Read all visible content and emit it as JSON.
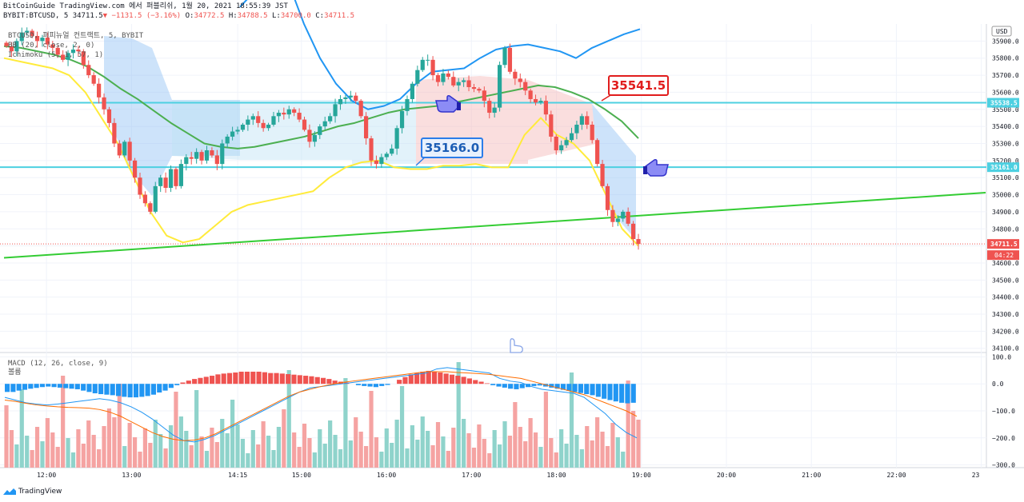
{
  "header": {
    "line1": "BitCoinGuide TradingView.com 에서 퍼블리쉬, 1월 20, 2021 18:55:39 JST",
    "symbol": "BYBIT:BTCUSD, 5",
    "last": "34711.5",
    "change": "−1131.5 (−3.16%)",
    "o_label": "O:",
    "o": "34772.5",
    "h_label": "H:",
    "h": "34788.5",
    "l_label": "L:",
    "l": "34700.0",
    "c_label": "C:",
    "c": "34711.5"
  },
  "indicators": {
    "main": "BTCUSD, 퍼피뉴얼 컨트랙트, 5, BYBIT",
    "bb": "BB (20, close, 2, 0)",
    "ichimoku": "Ichimoku (5, 1, 57, 1)",
    "macd": "MACD (12, 26, close, 9)",
    "volume": "볼륨"
  },
  "price_axis": {
    "currency": "USD",
    "ticks": [
      35900,
      35800,
      35700,
      35600,
      35500,
      35400,
      35300,
      35200,
      35100,
      35000,
      34900,
      34800,
      34700,
      34600,
      34500,
      34400,
      34300,
      34200,
      34100
    ],
    "labels": {
      "level_high": "35538.5",
      "level_low": "35161.0",
      "last_price": "34711.5",
      "countdown": "04:22"
    }
  },
  "macd_axis": {
    "ticks": [
      "100.0",
      "0.0",
      "−100.0",
      "−200.0",
      "−300.0"
    ]
  },
  "time_axis": {
    "ticks": [
      "12:00",
      "13:00",
      "14:15",
      "15:00",
      "16:00",
      "17:00",
      "18:00",
      "19:00",
      "20:00",
      "21:00",
      "22:00",
      "23"
    ]
  },
  "callouts": {
    "high": "35541.5",
    "low": "35166.0"
  },
  "footer": {
    "brand": "TradingView"
  },
  "colors": {
    "up": "#26a69a",
    "down": "#ef5350",
    "bb_upper": "#2196f3",
    "bb_mid": "#4caf50",
    "bb_lower": "#ffeb3b",
    "hline": "#4dd0e1",
    "trend": "#33cc33"
  },
  "chart_data": {
    "type": "candlestick",
    "symbol": "BYBIT:BTCUSD, 5",
    "ylim": [
      34080,
      36000
    ],
    "horizontal_levels": [
      35538.5,
      35161.0
    ],
    "trendline": {
      "from": {
        "time": "11:30",
        "price": 34630
      },
      "to": {
        "time": "23:00",
        "price": 35010
      }
    },
    "close_series": [
      35870,
      35840,
      35900,
      35950,
      35960,
      35930,
      35900,
      35920,
      35880,
      35860,
      35820,
      35790,
      35830,
      35850,
      35840,
      35760,
      35700,
      35650,
      35570,
      35500,
      35420,
      35300,
      35230,
      35310,
      35200,
      35100,
      35000,
      34950,
      34900,
      35050,
      35100,
      35040,
      35150,
      35050,
      35180,
      35220,
      35210,
      35250,
      35200,
      35260,
      35230,
      35180,
      35300,
      35340,
      35370,
      35380,
      35410,
      35440,
      35460,
      35420,
      35390,
      35410,
      35460,
      35480,
      35470,
      35500,
      35480,
      35440,
      35380,
      35310,
      35350,
      35400,
      35430,
      35460,
      35530,
      35560,
      35570,
      35580,
      35550,
      35460,
      35330,
      35200,
      35180,
      35220,
      35240,
      35270,
      35390,
      35490,
      35560,
      35650,
      35730,
      35790,
      35790,
      35700,
      35660,
      35710,
      35690,
      35640,
      35660,
      35670,
      35630,
      35620,
      35610,
      35550,
      35480,
      35510,
      35760,
      35860,
      35720,
      35680,
      35660,
      35610,
      35560,
      35540,
      35550,
      35470,
      35340,
      35260,
      35290,
      35320,
      35360,
      35410,
      35460,
      35410,
      35320,
      35180,
      35050,
      34910,
      34840,
      34860,
      34900,
      34830,
      34740,
      34711.5
    ],
    "bb_upper": [
      null,
      null,
      36100,
      36200,
      36300,
      36250,
      36000,
      35800,
      35650,
      35550,
      35500,
      35520,
      35560,
      35650,
      35720,
      35730,
      35740,
      35800,
      35850,
      35870,
      35880,
      35860,
      35840,
      35800,
      35860,
      35900,
      35940,
      35970
    ],
    "bb_middle": [
      35870,
      35860,
      35840,
      35820,
      35790,
      35750,
      35690,
      35620,
      35560,
      35490,
      35420,
      35360,
      35300,
      35280,
      35270,
      35280,
      35300,
      35320,
      35340,
      35370,
      35400,
      35420,
      35450,
      35480,
      35500,
      35510,
      35520,
      35540,
      35560,
      35580,
      35600,
      35620,
      35640,
      35630,
      35600,
      35560,
      35500,
      35430,
      35330
    ],
    "bb_lower": [
      35800,
      35780,
      35760,
      35740,
      35700,
      35600,
      35450,
      35300,
      35100,
      34900,
      34760,
      34720,
      34740,
      34820,
      34900,
      34940,
      34960,
      34980,
      35000,
      35020,
      35100,
      35160,
      35190,
      35200,
      35160,
      35150,
      35150,
      35170,
      35170,
      35180,
      35160,
      35160,
      35350,
      35450,
      35350,
      35300,
      35200,
      35000,
      34800,
      34700
    ],
    "macd_ylim": [
      -310,
      110
    ],
    "macd_histogram": [
      -30,
      -30,
      -25,
      -22,
      -18,
      -15,
      -12,
      -10,
      -12,
      -14,
      -16,
      -18,
      -20,
      -25,
      -30,
      -35,
      -38,
      -40,
      -42,
      -45,
      -48,
      -50,
      -50,
      -48,
      -45,
      -40,
      -32,
      -25,
      -15,
      -5,
      5,
      12,
      18,
      22,
      26,
      30,
      35,
      38,
      40,
      42,
      45,
      45,
      45,
      45,
      43,
      40,
      40,
      38,
      36,
      34,
      32,
      30,
      28,
      25,
      22,
      18,
      12,
      8,
      5,
      0,
      -5,
      -8,
      -10,
      -12,
      -8,
      -4,
      0,
      15,
      25,
      35,
      40,
      45,
      48,
      46,
      42,
      38,
      34,
      30,
      26,
      20,
      14,
      8,
      2,
      -5,
      -10,
      -14,
      -18,
      -20,
      -16,
      -12,
      -8,
      -6,
      -10,
      -14,
      -18,
      -22,
      -26,
      -30,
      -34,
      -38,
      -42,
      -48,
      -55,
      -60,
      -65,
      -70,
      -72,
      -70
    ],
    "macd_line": [
      -50,
      -60,
      -70,
      -75,
      -78,
      -75,
      -70,
      -65,
      -60,
      -55,
      -60,
      -70,
      -85,
      -105,
      -130,
      -160,
      -190,
      -210,
      -215,
      -205,
      -190,
      -170,
      -150,
      -130,
      -110,
      -90,
      -70,
      -50,
      -30,
      -15,
      -10,
      -5,
      0,
      5,
      10,
      15,
      20,
      25,
      30,
      35,
      40,
      55,
      60,
      55,
      50,
      45,
      40,
      20,
      10,
      5,
      -10,
      -20,
      -25,
      -30,
      -35,
      -50,
      -80,
      -110,
      -150,
      -180,
      -200
    ],
    "signal_line": [
      -60,
      -65,
      -72,
      -78,
      -82,
      -85,
      -87,
      -88,
      -90,
      -95,
      -105,
      -120,
      -140,
      -160,
      -180,
      -195,
      -205,
      -210,
      -208,
      -200,
      -185,
      -165,
      -145,
      -125,
      -105,
      -85,
      -65,
      -45,
      -30,
      -20,
      -10,
      -2,
      5,
      10,
      15,
      20,
      25,
      30,
      35,
      40,
      45,
      45,
      45,
      42,
      40,
      38,
      35,
      30,
      25,
      20,
      10,
      0,
      -10,
      -20,
      -30,
      -40,
      -55,
      -70,
      -85,
      -100,
      -120
    ],
    "volume_color_pattern": "alternating up/down per candle"
  }
}
